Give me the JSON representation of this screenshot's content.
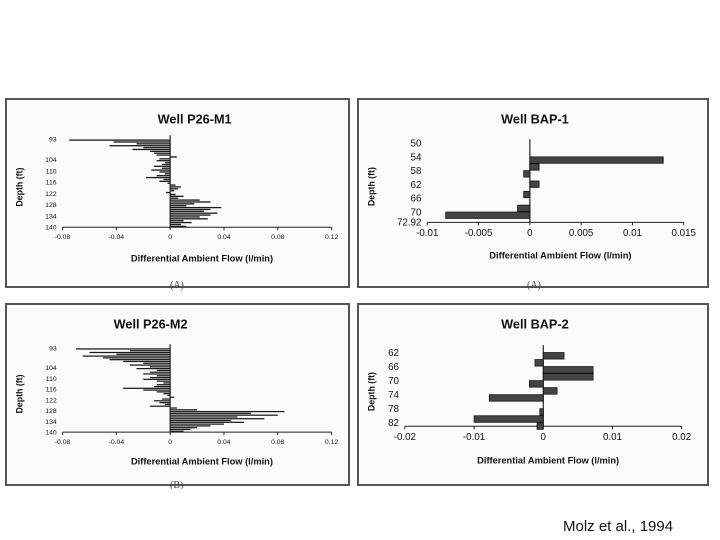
{
  "credit": "Molz et al., 1994",
  "chart_data": [
    {
      "type": "bar",
      "orientation": "horizontal",
      "title": "Well P26-M1",
      "xlabel": "Differential Ambient Flow  (l/min)",
      "ylabel": "Depth  (ft)",
      "xlim": [
        -0.08,
        0.12
      ],
      "ylim": [
        93,
        140
      ],
      "xticks": [
        -0.08,
        -0.04,
        0,
        0.04,
        0.08,
        0.12
      ],
      "xtick_labels": [
        "-0.08",
        "-0.04",
        "0",
        "0.04",
        "0.08",
        "0.12"
      ],
      "yticks": [
        93,
        104,
        110,
        116,
        122,
        128,
        134,
        140
      ],
      "ytick_labels": [
        "93",
        "104",
        "110",
        "116",
        "122",
        "128",
        "134",
        "140"
      ],
      "depths": [
        93,
        94,
        95,
        96,
        97,
        98,
        99,
        100,
        101,
        102,
        103,
        104,
        105,
        106,
        107,
        108,
        109,
        110,
        111,
        112,
        113,
        114,
        115,
        116,
        117,
        118,
        119,
        120,
        121,
        122,
        123,
        124,
        125,
        126,
        127,
        128,
        129,
        130,
        131,
        132,
        133,
        134,
        135,
        136,
        137,
        138,
        139
      ],
      "values": [
        -0.075,
        -0.042,
        -0.025,
        -0.045,
        -0.02,
        -0.028,
        -0.015,
        -0.012,
        -0.01,
        0.005,
        -0.008,
        -0.01,
        -0.004,
        -0.006,
        -0.012,
        -0.006,
        -0.014,
        -0.008,
        -0.004,
        -0.01,
        -0.018,
        -0.005,
        -0.008,
        -0.002,
        0.004,
        0.008,
        0.006,
        0.003,
        -0.003,
        0.004,
        0.01,
        0.006,
        0.022,
        0.03,
        0.018,
        0.012,
        0.038,
        0.03,
        0.025,
        0.035,
        0.03,
        0.022,
        0.028,
        0.01,
        0.016,
        0.008,
        0.012
      ]
    },
    {
      "type": "bar",
      "orientation": "horizontal",
      "title": "Well BAP-1",
      "xlabel": "Differential Ambient Flow  (l/min)",
      "ylabel": "Depth  (ft)",
      "xlim": [
        -0.01,
        0.015
      ],
      "ylim": [
        50,
        73
      ],
      "xticks": [
        -0.01,
        -0.005,
        0,
        0.005,
        0.01,
        0.015
      ],
      "xtick_labels": [
        "-0.01",
        "-0.005",
        "0",
        "0.005",
        "0.01",
        "0.015"
      ],
      "yticks": [
        50,
        54,
        58,
        62,
        66,
        70,
        72.92
      ],
      "ytick_labels": [
        "50",
        "54",
        "58",
        "62",
        "66",
        "70",
        "72.92"
      ],
      "bars": [
        {
          "top": 54,
          "bottom": 56,
          "value": 0.013
        },
        {
          "top": 56,
          "bottom": 58,
          "value": 0.0009
        },
        {
          "top": 58,
          "bottom": 60,
          "value": -0.0006
        },
        {
          "top": 61,
          "bottom": 63,
          "value": 0.0009
        },
        {
          "top": 64,
          "bottom": 66,
          "value": -0.0006
        },
        {
          "top": 68,
          "bottom": 70,
          "value": -0.0012
        },
        {
          "top": 70,
          "bottom": 72,
          "value": -0.0082
        }
      ]
    },
    {
      "type": "bar",
      "orientation": "horizontal",
      "title": "Well P26-M2",
      "xlabel": "Differential Ambient Flow  (l/min)",
      "ylabel": "Depth  (ft)",
      "xlim": [
        -0.08,
        0.12
      ],
      "ylim": [
        93,
        140
      ],
      "xticks": [
        -0.08,
        -0.04,
        0,
        0.04,
        0.08,
        0.12
      ],
      "xtick_labels": [
        "-0.08",
        "-0.04",
        "0",
        "0.04",
        "0.08",
        "0.12"
      ],
      "yticks": [
        93,
        104,
        110,
        116,
        122,
        128,
        134,
        140
      ],
      "ytick_labels": [
        "93",
        "104",
        "110",
        "116",
        "122",
        "128",
        "134",
        "140"
      ],
      "depths": [
        93,
        94,
        95,
        96,
        97,
        98,
        99,
        100,
        101,
        102,
        103,
        104,
        105,
        106,
        107,
        108,
        109,
        110,
        111,
        112,
        113,
        114,
        115,
        116,
        117,
        118,
        119,
        120,
        121,
        122,
        123,
        124,
        125,
        126,
        127,
        128,
        129,
        130,
        131,
        132,
        133,
        134,
        135,
        136,
        137,
        138,
        139
      ],
      "values": [
        -0.07,
        -0.03,
        -0.06,
        -0.04,
        -0.065,
        -0.05,
        -0.045,
        -0.035,
        -0.02,
        -0.03,
        -0.015,
        -0.025,
        -0.01,
        -0.015,
        -0.02,
        -0.01,
        -0.015,
        -0.02,
        -0.01,
        -0.005,
        -0.01,
        -0.012,
        -0.035,
        -0.02,
        -0.01,
        -0.005,
        -0.002,
        0.003,
        -0.006,
        -0.012,
        -0.008,
        -0.004,
        -0.015,
        0.005,
        0.02,
        0.085,
        0.06,
        0.08,
        0.05,
        0.07,
        0.045,
        0.055,
        0.04,
        0.03,
        0.02,
        0.015,
        0.01
      ]
    },
    {
      "type": "bar",
      "orientation": "horizontal",
      "title": "Well BAP-2",
      "xlabel": "Differential Ambient Flow  (l/min)",
      "ylabel": "Depth  (ft)",
      "xlim": [
        -0.02,
        0.02
      ],
      "ylim": [
        61,
        83
      ],
      "xticks": [
        -0.02,
        -0.01,
        0,
        0.01,
        0.02
      ],
      "xtick_labels": [
        "-0.02",
        "-0.01",
        "0",
        "0.01",
        "0.02"
      ],
      "yticks": [
        62,
        66,
        70,
        74,
        78,
        82
      ],
      "ytick_labels": [
        "62",
        "66",
        "70",
        "74",
        "78",
        "82"
      ],
      "bars": [
        {
          "top": 62,
          "bottom": 64,
          "value": 0.003
        },
        {
          "top": 64,
          "bottom": 66,
          "value": -0.0012
        },
        {
          "top": 66,
          "bottom": 68,
          "value": 0.0072
        },
        {
          "top": 68,
          "bottom": 70,
          "value": 0.0072
        },
        {
          "top": 70,
          "bottom": 72,
          "value": -0.002
        },
        {
          "top": 72,
          "bottom": 74,
          "value": 0.002
        },
        {
          "top": 74,
          "bottom": 76,
          "value": -0.0078
        },
        {
          "top": 78,
          "bottom": 80,
          "value": -0.0005
        },
        {
          "top": 80,
          "bottom": 82,
          "value": -0.01
        },
        {
          "top": 82,
          "bottom": 84,
          "value": -0.0009
        }
      ]
    }
  ],
  "subfigure_labels": [
    "(A)",
    "(A)",
    "(B)"
  ]
}
